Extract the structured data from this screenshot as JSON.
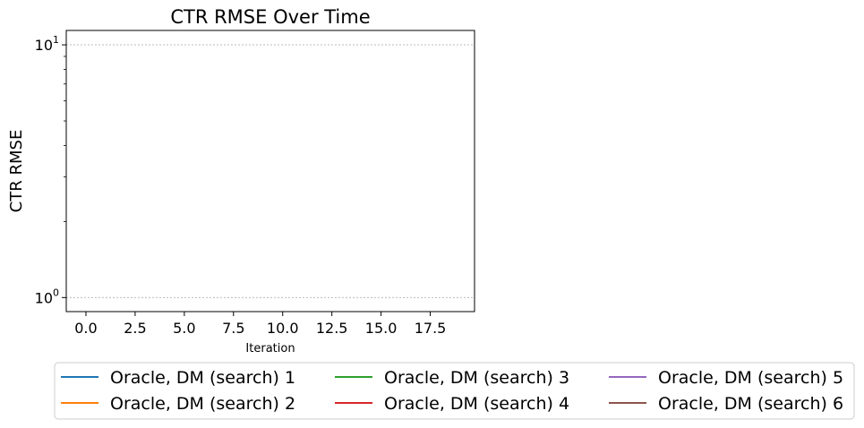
{
  "chart_data": {
    "type": "line",
    "title": "CTR RMSE Over Time",
    "xlabel": "Iteration",
    "ylabel": "CTR RMSE",
    "xlim": [
      -1,
      19.75
    ],
    "ylim": [
      0.88,
      11.4
    ],
    "yscale": "log",
    "grid": "y-major-dashed",
    "x_ticks": [
      0,
      2.5,
      5,
      7.5,
      10,
      12.5,
      15,
      17.5
    ],
    "x_tick_labels": [
      "0.0",
      "2.5",
      "5.0",
      "7.5",
      "10.0",
      "12.5",
      "15.0",
      "17.5"
    ],
    "y_ticks_major": [
      1,
      10
    ],
    "y_tick_labels": [
      {
        "base": "10",
        "exp": "0"
      },
      {
        "base": "10",
        "exp": "1"
      }
    ],
    "y_ticks_minor": [
      2,
      3,
      4,
      5,
      6,
      7,
      8,
      9
    ],
    "legend_position": "below-center",
    "legend_columns": 3,
    "series": [
      {
        "name": "Oracle, DM (search) 1",
        "color": "#1f77b4",
        "x": [],
        "y": []
      },
      {
        "name": "Oracle, DM (search) 2",
        "color": "#ff7f0e",
        "x": [],
        "y": []
      },
      {
        "name": "Oracle, DM (search) 3",
        "color": "#2ca02c",
        "x": [],
        "y": []
      },
      {
        "name": "Oracle, DM (search) 4",
        "color": "#d62728",
        "x": [],
        "y": []
      },
      {
        "name": "Oracle, DM (search) 5",
        "color": "#9467bd",
        "x": [],
        "y": []
      },
      {
        "name": "Oracle, DM (search) 6",
        "color": "#8c564b",
        "x": [],
        "y": []
      }
    ]
  }
}
